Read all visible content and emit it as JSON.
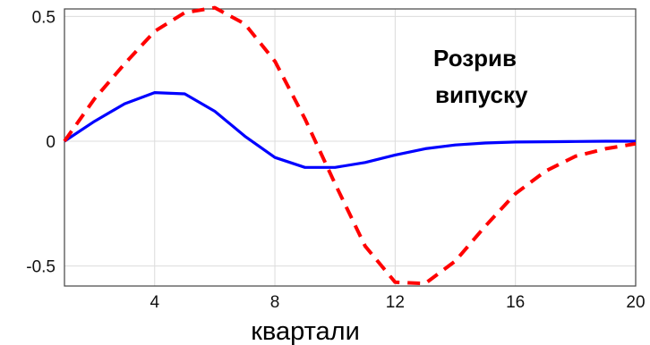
{
  "chart_data": {
    "type": "line",
    "title": "",
    "xlabel": "квартали",
    "ylabel": "",
    "annotation": [
      "Розрив",
      "випуску"
    ],
    "xlim": [
      1,
      20
    ],
    "ylim": [
      -0.58,
      0.53
    ],
    "grid": true,
    "legend": "none",
    "x_ticks": [
      4,
      8,
      12,
      16,
      20
    ],
    "x_tick_labels": [
      "4",
      "8",
      "12",
      "16",
      "20"
    ],
    "y_ticks": [
      0.5,
      0,
      -0.5
    ],
    "y_tick_labels": [
      "0.5",
      "0",
      "-0.5"
    ],
    "x": [
      1,
      2,
      3,
      4,
      5,
      6,
      7,
      8,
      9,
      10,
      11,
      12,
      13,
      14,
      15,
      16,
      17,
      18,
      19,
      20
    ],
    "series": [
      {
        "style": "solid",
        "color": "#0000ff",
        "values": [
          0.0,
          0.08,
          0.15,
          0.195,
          0.19,
          0.12,
          0.02,
          -0.065,
          -0.105,
          -0.105,
          -0.085,
          -0.055,
          -0.03,
          -0.015,
          -0.007,
          -0.003,
          -0.002,
          -0.001,
          0.0,
          0.0
        ]
      },
      {
        "style": "dashed",
        "color": "#ff0000",
        "values": [
          0.0,
          0.17,
          0.31,
          0.44,
          0.515,
          0.535,
          0.47,
          0.32,
          0.09,
          -0.17,
          -0.42,
          -0.565,
          -0.57,
          -0.48,
          -0.34,
          -0.21,
          -0.12,
          -0.06,
          -0.03,
          -0.01
        ]
      }
    ]
  }
}
